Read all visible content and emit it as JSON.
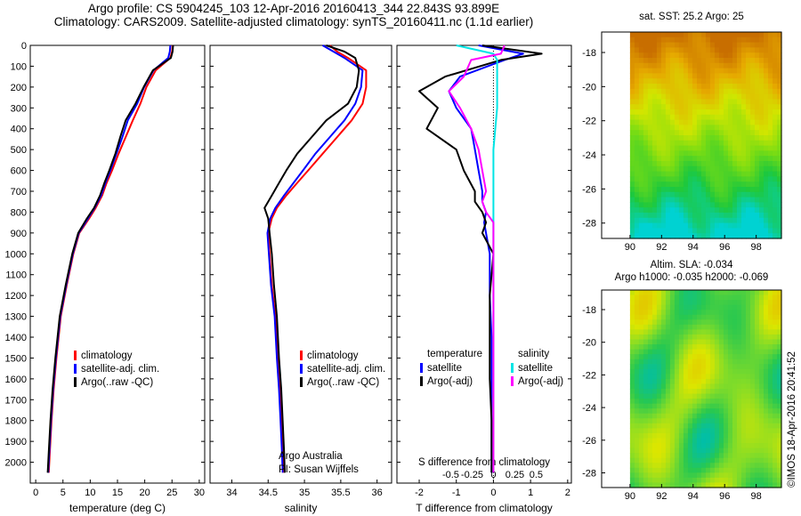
{
  "header": {
    "line1": "Argo profile: CS 5904245_103 12-Apr-2016 20160413_344 22.843S 93.899E",
    "line2": "Climatology: CARS2009. Satellite-adjusted climatology: synTS_20160411.nc (1.1d earlier)"
  },
  "credit": "©IMOS 18-Apr-2016 20:41:52",
  "colors": {
    "climatology": "#ff0000",
    "satellite": "#0000ff",
    "argo": "#000000",
    "sal_sat": "#00e5e5",
    "sal_argo": "#ff00ff",
    "grid_zero": "#000000"
  },
  "chart_data": [
    {
      "id": "temperature",
      "type": "line",
      "xlabel": "temperature (deg C)",
      "ylabel": "",
      "xlim": [
        -1,
        31
      ],
      "ylim": [
        2100,
        0
      ],
      "xticks": [
        0,
        5,
        10,
        15,
        20,
        25,
        30
      ],
      "yticks": [
        0,
        100,
        200,
        300,
        400,
        500,
        600,
        700,
        800,
        900,
        1000,
        1100,
        1200,
        1300,
        1400,
        1500,
        1600,
        1700,
        1800,
        1900,
        2000
      ],
      "legend": [
        "climatology",
        "satellite-adj. clim.",
        "Argo(..raw -QC)"
      ],
      "series": [
        {
          "name": "climatology",
          "color": "#ff0000",
          "x": [
            25.1,
            25.0,
            24.7,
            22.0,
            20.3,
            19.2,
            17.8,
            16.5,
            15.2,
            14.0,
            13.0,
            12.2,
            11.0,
            9.8,
            8.0,
            6.9,
            5.7,
            4.6,
            3.8,
            3.3,
            2.9,
            2.6,
            2.4
          ],
          "y": [
            0,
            30,
            60,
            120,
            200,
            280,
            360,
            440,
            520,
            600,
            660,
            720,
            780,
            830,
            900,
            1000,
            1150,
            1300,
            1500,
            1650,
            1800,
            1950,
            2050
          ]
        },
        {
          "name": "satellite-adj. clim.",
          "color": "#0000ff",
          "x": [
            24.7,
            24.6,
            24.3,
            21.6,
            19.9,
            18.6,
            16.9,
            15.9,
            14.8,
            13.7,
            12.8,
            12.0,
            10.8,
            9.6,
            7.9,
            6.8,
            5.6,
            4.5,
            3.7,
            3.2,
            2.8,
            2.5,
            2.3
          ],
          "y": [
            0,
            30,
            60,
            120,
            200,
            280,
            360,
            440,
            520,
            600,
            660,
            720,
            780,
            830,
            900,
            1000,
            1150,
            1300,
            1500,
            1650,
            1800,
            1950,
            2050
          ]
        },
        {
          "name": "Argo(..raw -QC)",
          "color": "#000000",
          "x": [
            25.2,
            25.1,
            24.8,
            21.5,
            19.8,
            18.3,
            16.5,
            15.5,
            14.6,
            13.5,
            12.6,
            11.8,
            10.7,
            9.4,
            7.8,
            6.7,
            5.5,
            4.4,
            3.6,
            3.1,
            2.7,
            2.4,
            2.2
          ],
          "y": [
            0,
            30,
            60,
            120,
            200,
            280,
            360,
            440,
            520,
            600,
            660,
            720,
            780,
            830,
            900,
            1000,
            1150,
            1300,
            1500,
            1650,
            1800,
            1950,
            2050
          ]
        }
      ]
    },
    {
      "id": "salinity",
      "type": "line",
      "xlabel": "salinity",
      "ylabel": "",
      "xlim": [
        33.7,
        36.2
      ],
      "ylim": [
        2100,
        0
      ],
      "xticks": [
        34,
        34.5,
        35,
        35.5,
        36
      ],
      "legend": [
        "climatology",
        "satellite-adj. clim.",
        "Argo(..raw -QC)"
      ],
      "annotation_line1": "Argo Australia",
      "annotation_line2": "PI: Susan Wijffels",
      "series": [
        {
          "name": "climatology",
          "color": "#ff0000",
          "x": [
            35.35,
            35.45,
            35.6,
            35.85,
            35.85,
            35.8,
            35.65,
            35.45,
            35.25,
            35.05,
            34.9,
            34.75,
            34.62,
            34.55,
            34.5,
            34.52,
            34.55,
            34.6,
            34.63,
            34.66,
            34.68,
            34.7,
            34.71
          ],
          "y": [
            0,
            30,
            60,
            120,
            200,
            280,
            360,
            440,
            520,
            600,
            660,
            720,
            780,
            830,
            900,
            1000,
            1150,
            1300,
            1500,
            1650,
            1800,
            1950,
            2050
          ]
        },
        {
          "name": "satellite-adj. clim.",
          "color": "#0000ff",
          "x": [
            35.25,
            35.4,
            35.55,
            35.8,
            35.78,
            35.7,
            35.55,
            35.35,
            35.15,
            34.98,
            34.85,
            34.72,
            34.6,
            34.53,
            34.49,
            34.51,
            34.54,
            34.59,
            34.62,
            34.65,
            34.67,
            34.69,
            34.7
          ],
          "y": [
            0,
            30,
            60,
            120,
            200,
            280,
            360,
            440,
            520,
            600,
            660,
            720,
            780,
            830,
            900,
            1000,
            1150,
            1300,
            1500,
            1650,
            1800,
            1950,
            2050
          ]
        },
        {
          "name": "Argo(..raw -QC)",
          "color": "#000000",
          "x": [
            35.3,
            35.55,
            35.7,
            35.75,
            35.72,
            35.6,
            35.3,
            35.1,
            34.9,
            34.75,
            34.65,
            34.55,
            34.45,
            34.5,
            34.52,
            34.55,
            34.58,
            34.62,
            34.65,
            34.68,
            34.7,
            34.72,
            34.73
          ],
          "y": [
            0,
            30,
            60,
            120,
            200,
            280,
            360,
            440,
            520,
            600,
            660,
            720,
            780,
            830,
            900,
            1000,
            1150,
            1300,
            1500,
            1650,
            1800,
            1950,
            2050
          ]
        }
      ]
    },
    {
      "id": "differences",
      "type": "line",
      "xlabel": "T difference from climatology",
      "xlabel_top": "S difference from climatology",
      "xlim": [
        -2.6,
        2.1
      ],
      "ylim": [
        2100,
        0
      ],
      "xticks_t": [
        "-2",
        "-1",
        "0",
        "1",
        "2"
      ],
      "xticks_t_vals": [
        -2,
        -1,
        0,
        1,
        2
      ],
      "xticks_s": [
        "-0.5",
        "-0.25",
        "0",
        "0.25",
        "0.5"
      ],
      "xticks_s_vals": [
        -0.5,
        -0.25,
        0,
        0.25,
        0.5
      ],
      "legend_temperature_title": "temperature",
      "legend_salinity_title": "salinity",
      "legend": [
        "satellite",
        "Argo(-adj)",
        "satellite",
        "Argo(-adj)"
      ],
      "series": [
        {
          "name": "T satellite",
          "color": "#0000ff",
          "x": [
            -0.4,
            0.8,
            0.3,
            -0.9,
            -1.2,
            -1.0,
            -0.6,
            -0.5,
            -0.4,
            -0.3,
            -0.3,
            -0.2,
            -0.25,
            -0.2,
            -0.1,
            -0.1,
            -0.05,
            -0.05,
            -0.05,
            -0.05,
            -0.05,
            -0.05
          ],
          "y": [
            0,
            40,
            70,
            150,
            220,
            300,
            400,
            500,
            600,
            700,
            750,
            800,
            850,
            900,
            1000,
            1200,
            1400,
            1600,
            1800,
            1900,
            2000,
            2050
          ]
        },
        {
          "name": "T Argo(-adj)",
          "color": "#000000",
          "x": [
            -0.3,
            1.3,
            0.2,
            -1.3,
            -2.0,
            -1.5,
            -1.8,
            -1.0,
            -0.8,
            -0.5,
            -0.5,
            -0.3,
            -0.2,
            -0.3,
            0.0,
            -0.1,
            -0.1,
            -0.1,
            -0.05,
            -0.05,
            -0.05,
            -0.05
          ],
          "y": [
            0,
            40,
            70,
            150,
            220,
            300,
            400,
            500,
            600,
            700,
            750,
            800,
            850,
            900,
            1000,
            1200,
            1400,
            1600,
            1800,
            1900,
            2000,
            2050
          ]
        },
        {
          "name": "S satellite",
          "color": "#00e5e5",
          "x": [
            -1.0,
            0.0,
            0.1,
            0.1,
            0.1,
            0.1,
            0.05,
            0.0,
            0.0,
            0.0,
            0.0,
            0.0,
            0.0,
            0.0,
            0.0,
            0.0,
            0.0,
            0.0,
            0.0,
            0.0,
            0.0,
            0.0
          ],
          "y": [
            0,
            40,
            70,
            150,
            220,
            300,
            400,
            500,
            600,
            700,
            750,
            800,
            850,
            900,
            1000,
            1200,
            1400,
            1600,
            1800,
            1900,
            2000,
            2050
          ]
        },
        {
          "name": "S Argo(-adj)",
          "color": "#ff00ff",
          "x": [
            0.3,
            0.2,
            -0.6,
            -0.8,
            -1.2,
            -0.9,
            -0.6,
            -0.4,
            -0.3,
            -0.2,
            -0.3,
            -0.2,
            0.0,
            0.0,
            0.0,
            0.0,
            0.0,
            0.0,
            0.0,
            0.0,
            0.0,
            0.0
          ],
          "y": [
            0,
            40,
            70,
            150,
            220,
            300,
            400,
            500,
            600,
            700,
            750,
            800,
            850,
            900,
            1000,
            1200,
            1400,
            1600,
            1800,
            1900,
            2000,
            2050
          ]
        }
      ]
    },
    {
      "id": "sst_map",
      "type": "heatmap",
      "title": "sat. SST: 25.2 Argo: 25",
      "xticks": [
        "90",
        "92",
        "94",
        "96",
        "98"
      ],
      "xtick_vals": [
        90,
        92,
        94,
        96,
        98
      ],
      "yticks": [
        "-18",
        "-20",
        "-22",
        "-24",
        "-26",
        "-28"
      ],
      "ytick_vals": [
        -18,
        -20,
        -22,
        -24,
        -26,
        -28
      ],
      "xlim": [
        88.2,
        99.6
      ],
      "ylim": [
        -28.9,
        -16.8
      ],
      "argo_position": [
        93.899,
        -22.843
      ]
    },
    {
      "id": "sla_map",
      "type": "heatmap",
      "title_line1": "Altim. SLA: -0.034",
      "title_line2": "Argo h1000: -0.035 h2000: -0.069",
      "xticks": [
        "90",
        "92",
        "94",
        "96",
        "98"
      ],
      "xtick_vals": [
        90,
        92,
        94,
        96,
        98
      ],
      "yticks": [
        "-18",
        "-20",
        "-22",
        "-24",
        "-26",
        "-28"
      ],
      "ytick_vals": [
        -18,
        -20,
        -22,
        -24,
        -26,
        -28
      ],
      "xlim": [
        88.2,
        99.6
      ],
      "ylim": [
        -28.9,
        -16.8
      ]
    }
  ]
}
